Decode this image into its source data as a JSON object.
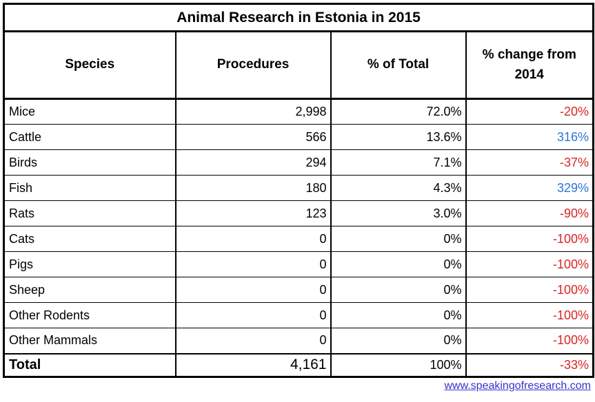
{
  "table": {
    "title": "Animal Research in Estonia in 2015",
    "columns": [
      "Species",
      "Procedures",
      "% of Total",
      "% change from 2014"
    ],
    "rows": [
      {
        "species": "Mice",
        "procedures": "2,998",
        "pct_of_total": "72.0%",
        "pct_change": "-20%",
        "change_color": "#d92525"
      },
      {
        "species": "Cattle",
        "procedures": "566",
        "pct_of_total": "13.6%",
        "pct_change": "316%",
        "change_color": "#2e75d6"
      },
      {
        "species": "Birds",
        "procedures": "294",
        "pct_of_total": "7.1%",
        "pct_change": "-37%",
        "change_color": "#d92525"
      },
      {
        "species": "Fish",
        "procedures": "180",
        "pct_of_total": "4.3%",
        "pct_change": "329%",
        "change_color": "#2e75d6"
      },
      {
        "species": "Rats",
        "procedures": "123",
        "pct_of_total": "3.0%",
        "pct_change": "-90%",
        "change_color": "#d92525"
      },
      {
        "species": "Cats",
        "procedures": "0",
        "pct_of_total": "0%",
        "pct_change": "-100%",
        "change_color": "#d92525"
      },
      {
        "species": "Pigs",
        "procedures": "0",
        "pct_of_total": "0%",
        "pct_change": "-100%",
        "change_color": "#d92525"
      },
      {
        "species": "Sheep",
        "procedures": "0",
        "pct_of_total": "0%",
        "pct_change": "-100%",
        "change_color": "#d92525"
      },
      {
        "species": "Other Rodents",
        "procedures": "0",
        "pct_of_total": "0%",
        "pct_change": "-100%",
        "change_color": "#d92525"
      },
      {
        "species": "Other Mammals",
        "procedures": "0",
        "pct_of_total": "0%",
        "pct_change": "-100%",
        "change_color": "#d92525"
      }
    ],
    "total_row": {
      "species": "Total",
      "procedures": "4,161",
      "pct_of_total": "100%",
      "pct_change": "-33%",
      "change_color": "#d92525"
    }
  },
  "footer": {
    "link_text": "www.speakingofresearch.com",
    "link_color": "#3333cc"
  },
  "colors": {
    "negative_change": "#d92525",
    "positive_change": "#2e75d6",
    "link": "#3333cc",
    "border": "#000000",
    "background": "#ffffff"
  },
  "chart_data": {
    "type": "table",
    "title": "Animal Research in Estonia in 2015",
    "columns": [
      "Species",
      "Procedures",
      "% of Total",
      "% change from 2014"
    ],
    "rows": [
      [
        "Mice",
        2998,
        "72.0%",
        "-20%"
      ],
      [
        "Cattle",
        566,
        "13.6%",
        "316%"
      ],
      [
        "Birds",
        294,
        "7.1%",
        "-37%"
      ],
      [
        "Fish",
        180,
        "4.3%",
        "329%"
      ],
      [
        "Rats",
        123,
        "3.0%",
        "-90%"
      ],
      [
        "Cats",
        0,
        "0%",
        "-100%"
      ],
      [
        "Pigs",
        0,
        "0%",
        "-100%"
      ],
      [
        "Sheep",
        0,
        "0%",
        "-100%"
      ],
      [
        "Other Rodents",
        0,
        "0%",
        "-100%"
      ],
      [
        "Other Mammals",
        0,
        "0%",
        "-100%"
      ],
      [
        "Total",
        4161,
        "100%",
        "-33%"
      ]
    ],
    "notes": "Negative % change values rendered in red, positive in blue"
  }
}
